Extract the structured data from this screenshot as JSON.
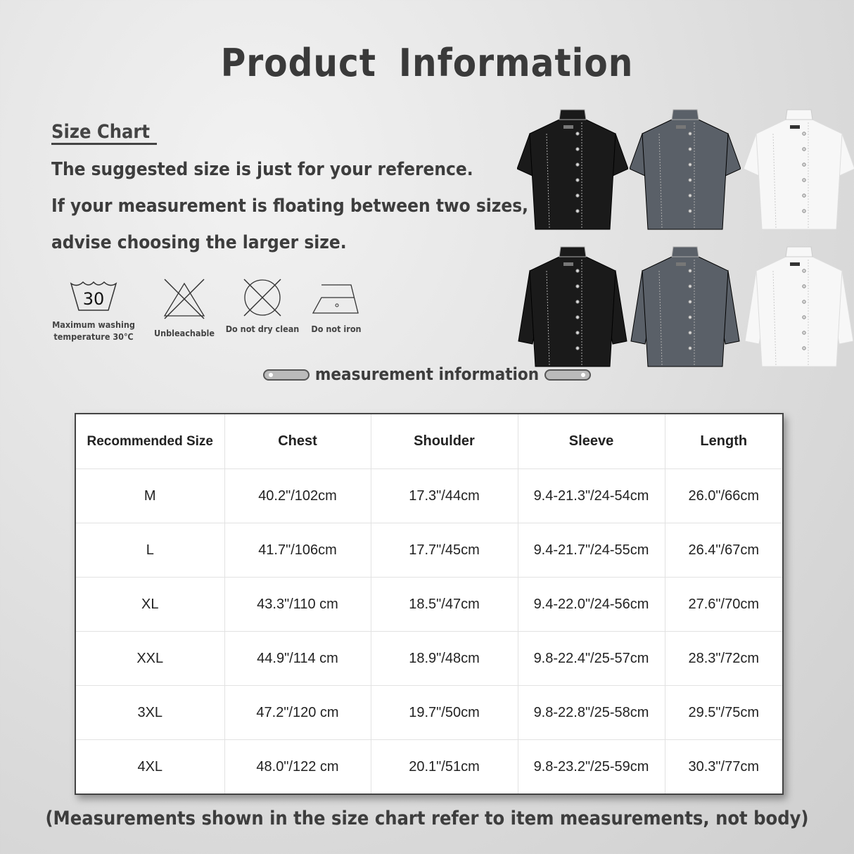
{
  "title": "Product  Information",
  "size_chart": {
    "heading": "Size Chart",
    "lines": [
      "The suggested size is just for your reference.",
      "If your measurement is floating between two sizes,",
      "advise choosing the larger size."
    ]
  },
  "care": [
    {
      "icon": "wash-30-icon",
      "symbol_text": "30",
      "label1": "Maximum washing",
      "label2": "temperature 30℃"
    },
    {
      "icon": "no-bleach-icon",
      "label1": "Unbleachable"
    },
    {
      "icon": "no-dry-clean-icon",
      "label1": "Do not dry clean"
    },
    {
      "icon": "no-iron-icon",
      "label1": "Do not iron"
    }
  ],
  "products": [
    {
      "name": "black-short-sleeve",
      "color": "#1a1a1a"
    },
    {
      "name": "grey-short-sleeve",
      "color": "#5a6068"
    },
    {
      "name": "white-short-sleeve",
      "color": "#f7f7f7"
    },
    {
      "name": "black-long-sleeve",
      "color": "#1a1a1a"
    },
    {
      "name": "grey-long-sleeve",
      "color": "#5a6068"
    },
    {
      "name": "white-long-sleeve",
      "color": "#f7f7f7"
    }
  ],
  "measurement_heading": "measurement  information",
  "table": {
    "headers": [
      "Recommended Size",
      "Chest",
      "Shoulder",
      "Sleeve",
      "Length"
    ],
    "rows": [
      [
        "M",
        "40.2\"/102cm",
        "17.3\"/44cm",
        "9.4-21.3\"/24-54cm",
        "26.0\"/66cm"
      ],
      [
        "L",
        "41.7\"/106cm",
        "17.7\"/45cm",
        "9.4-21.7\"/24-55cm",
        "26.4\"/67cm"
      ],
      [
        "XL",
        "43.3\"/110 cm",
        "18.5\"/47cm",
        "9.4-22.0\"/24-56cm",
        "27.6\"/70cm"
      ],
      [
        "XXL",
        "44.9\"/114 cm",
        "18.9\"/48cm",
        "9.8-22.4\"/25-57cm",
        "28.3\"/72cm"
      ],
      [
        "3XL",
        "47.2\"/120 cm",
        "19.7\"/50cm",
        "9.8-22.8\"/25-58cm",
        "29.5\"/75cm"
      ],
      [
        "4XL",
        "48.0\"/122 cm",
        "20.1\"/51cm",
        "9.8-23.2\"/25-59cm",
        "30.3\"/77cm"
      ]
    ]
  },
  "note": "(Measurements shown in the size chart refer to item measurements, not body)"
}
